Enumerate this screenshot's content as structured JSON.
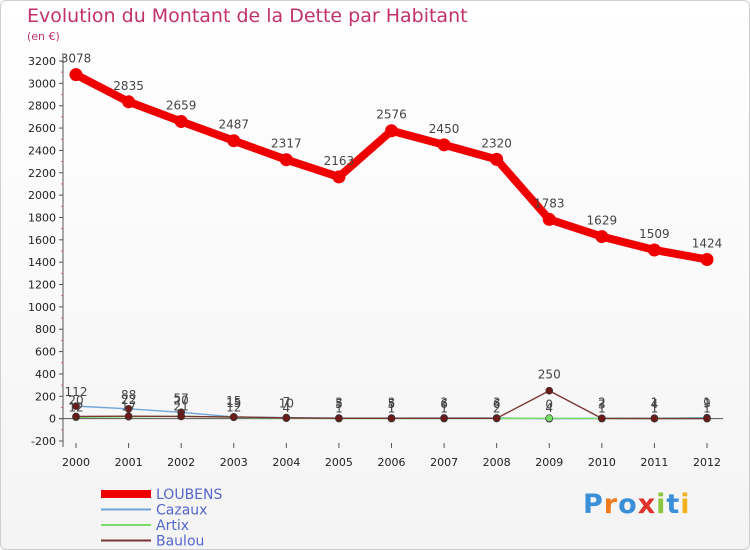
{
  "title": "Evolution du Montant de la Dette par Habitant",
  "subtitle": "(en €)",
  "logo": {
    "text": "Proxiti",
    "letter_colors": [
      "#3a8fd8",
      "#f07b1e",
      "#3a8fd8",
      "#e0312d",
      "#8cc63f",
      "#3a8fd8",
      "#f0b21e"
    ]
  },
  "chart_data": {
    "type": "line",
    "title": "Evolution du Montant de la Dette par Habitant",
    "ylabel": "(en €)",
    "xlabel": "",
    "x": [
      "2000",
      "2001",
      "2002",
      "2003",
      "2004",
      "2005",
      "2006",
      "2007",
      "2008",
      "2009",
      "2010",
      "2011",
      "2012"
    ],
    "ylim": [
      -200,
      3200
    ],
    "yticks": [
      -200,
      0,
      200,
      400,
      600,
      800,
      1000,
      1200,
      1400,
      1600,
      1800,
      2000,
      2200,
      2400,
      2600,
      2800,
      3000,
      3200
    ],
    "grid": false,
    "legend_position": "bottom-left",
    "series": [
      {
        "name": "LOUBENS",
        "color": "#ee0000",
        "values": [
          3078,
          2835,
          2659,
          2487,
          2317,
          2163,
          2576,
          2450,
          2320,
          1783,
          1629,
          1509,
          1424
        ]
      },
      {
        "name": "Cazaux",
        "color": "#6fa6d8",
        "values": [
          112,
          88,
          57,
          15,
          10,
          5,
          5,
          6,
          6,
          0,
          3,
          4,
          9
        ]
      },
      {
        "name": "Artix",
        "color": "#77dd66",
        "values": [
          12,
          17,
          21,
          12,
          4,
          1,
          1,
          1,
          2,
          4,
          1,
          1,
          1
        ]
      },
      {
        "name": "Baulou",
        "color": "#7a3535",
        "values": [
          20,
          22,
          20,
          15,
          7,
          3,
          3,
          3,
          3,
          250,
          2,
          1,
          1
        ]
      }
    ]
  }
}
